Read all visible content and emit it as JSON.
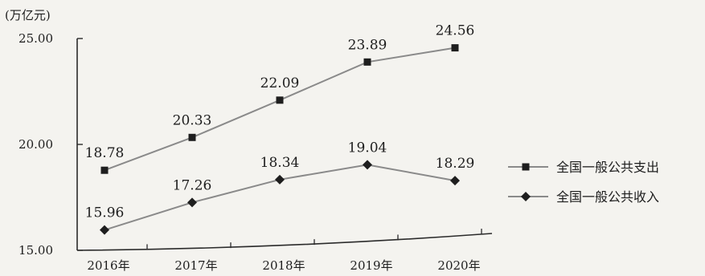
{
  "chart_data": {
    "type": "line",
    "title": "",
    "unit": "(万亿元)",
    "xlabel": "",
    "ylabel": "",
    "categories": [
      "2016年",
      "2017年",
      "2018年",
      "2019年",
      "2020年"
    ],
    "ylim": [
      15,
      25
    ],
    "yticks": [
      "15.00",
      "20.00",
      "25.00"
    ],
    "grid": false,
    "legend_position": "right",
    "series": [
      {
        "name": "全国一般公共支出",
        "marker": "square",
        "values": [
          18.78,
          20.33,
          22.09,
          23.89,
          24.56
        ],
        "labels": [
          "18.78",
          "20.33",
          "22.09",
          "23.89",
          "24.56"
        ]
      },
      {
        "name": "全国一般公共收入",
        "marker": "diamond",
        "values": [
          15.96,
          17.26,
          18.34,
          19.04,
          18.29
        ],
        "labels": [
          "15.96",
          "17.26",
          "18.34",
          "19.04",
          "18.29"
        ]
      }
    ],
    "colors": {
      "line": "#8a8a8a",
      "marker": "#1e1e1e",
      "axis": "#2b2b2b",
      "text": "#1e1e1e"
    }
  }
}
